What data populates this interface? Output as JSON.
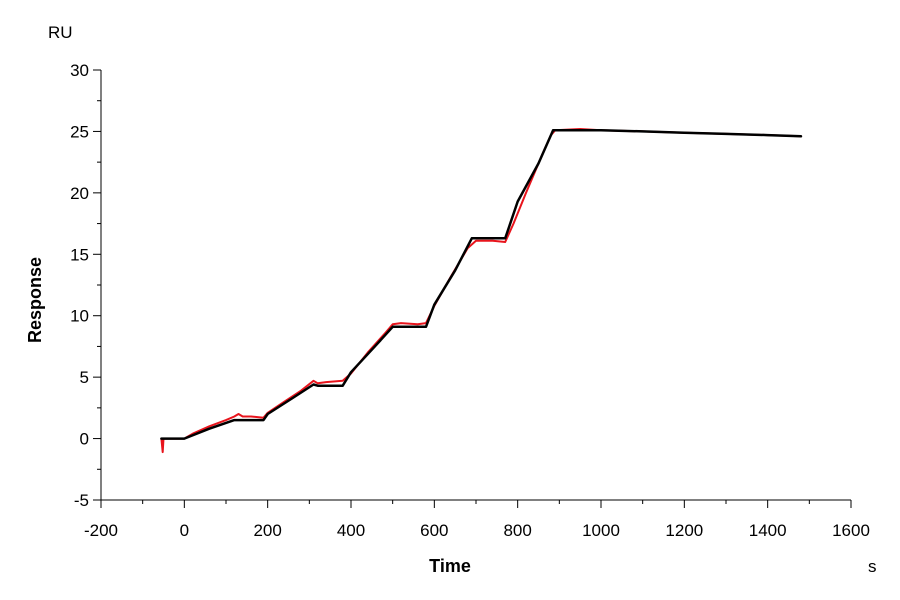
{
  "chart_data": {
    "type": "line",
    "title": "",
    "xlabel": "Time",
    "ylabel": "Response",
    "x_unit": "s",
    "y_unit": "RU",
    "xlim": [
      -200,
      1600
    ],
    "ylim": [
      -5,
      30
    ],
    "x_ticks": [
      -200,
      0,
      200,
      400,
      600,
      800,
      1000,
      1200,
      1400,
      1600
    ],
    "y_ticks": [
      -5,
      0,
      5,
      10,
      15,
      20,
      25,
      30
    ],
    "x_tick_labels": [
      "-200",
      "0",
      "200",
      "400",
      "600",
      "800",
      "1000",
      "1200",
      "1400",
      "1600"
    ],
    "y_tick_labels": [
      "-5",
      "0",
      "5",
      "10",
      "15",
      "20",
      "25",
      "30"
    ],
    "grid": false,
    "legend": "none",
    "series": [
      {
        "color": "#e8141c",
        "points": [
          [
            -55,
            0.0
          ],
          [
            -52,
            -1.1
          ],
          [
            -50,
            0.0
          ],
          [
            -20,
            0.0
          ],
          [
            0,
            0.0
          ],
          [
            20,
            0.4
          ],
          [
            60,
            1.0
          ],
          [
            100,
            1.5
          ],
          [
            120,
            1.8
          ],
          [
            130,
            2.0
          ],
          [
            140,
            1.8
          ],
          [
            160,
            1.8
          ],
          [
            190,
            1.7
          ],
          [
            200,
            2.1
          ],
          [
            240,
            3.0
          ],
          [
            280,
            3.9
          ],
          [
            310,
            4.7
          ],
          [
            320,
            4.5
          ],
          [
            340,
            4.6
          ],
          [
            380,
            4.7
          ],
          [
            400,
            5.3
          ],
          [
            440,
            7.0
          ],
          [
            480,
            8.5
          ],
          [
            500,
            9.3
          ],
          [
            520,
            9.4
          ],
          [
            560,
            9.3
          ],
          [
            580,
            9.4
          ],
          [
            600,
            10.8
          ],
          [
            640,
            13.2
          ],
          [
            680,
            15.5
          ],
          [
            700,
            16.1
          ],
          [
            740,
            16.1
          ],
          [
            770,
            16.0
          ],
          [
            790,
            17.5
          ],
          [
            820,
            20.0
          ],
          [
            860,
            23.2
          ],
          [
            880,
            24.7
          ],
          [
            890,
            25.1
          ],
          [
            950,
            25.2
          ],
          [
            1000,
            25.1
          ],
          [
            1100,
            25.0
          ],
          [
            1200,
            24.9
          ],
          [
            1300,
            24.8
          ],
          [
            1400,
            24.7
          ],
          [
            1480,
            24.6
          ]
        ]
      },
      {
        "color": "#000000",
        "points": [
          [
            -55,
            0.0
          ],
          [
            0,
            0.0
          ],
          [
            60,
            0.8
          ],
          [
            120,
            1.5
          ],
          [
            130,
            1.5
          ],
          [
            190,
            1.5
          ],
          [
            200,
            2.0
          ],
          [
            260,
            3.3
          ],
          [
            310,
            4.4
          ],
          [
            320,
            4.3
          ],
          [
            380,
            4.3
          ],
          [
            400,
            5.4
          ],
          [
            460,
            7.6
          ],
          [
            500,
            9.1
          ],
          [
            510,
            9.1
          ],
          [
            580,
            9.1
          ],
          [
            600,
            10.9
          ],
          [
            650,
            13.7
          ],
          [
            690,
            16.3
          ],
          [
            700,
            16.3
          ],
          [
            770,
            16.3
          ],
          [
            800,
            19.3
          ],
          [
            850,
            22.4
          ],
          [
            885,
            25.1
          ],
          [
            950,
            25.1
          ],
          [
            1000,
            25.1
          ],
          [
            1100,
            25.0
          ],
          [
            1200,
            24.9
          ],
          [
            1300,
            24.8
          ],
          [
            1400,
            24.7
          ],
          [
            1480,
            24.6
          ]
        ]
      }
    ]
  }
}
